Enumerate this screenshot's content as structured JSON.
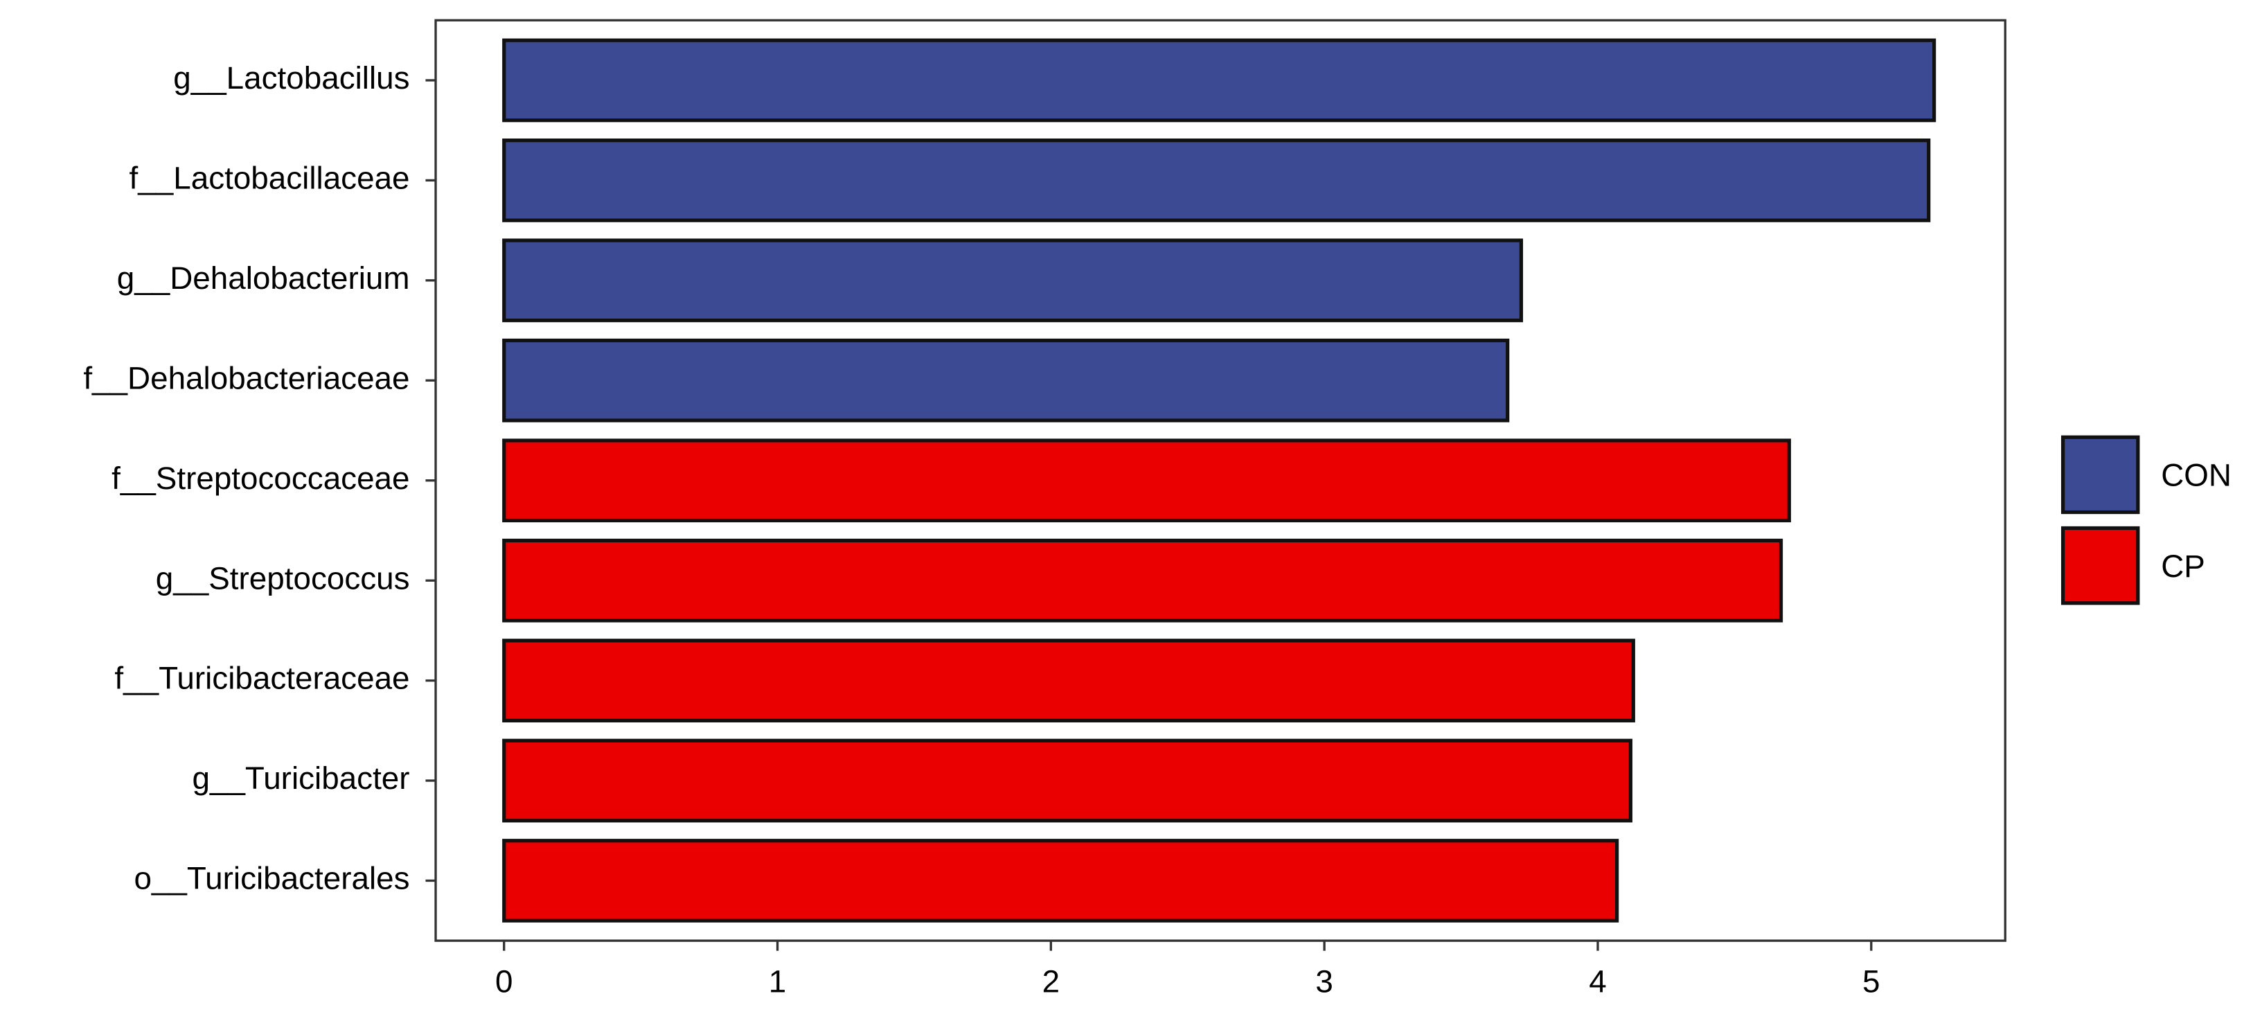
{
  "chart_data": {
    "type": "bar",
    "orientation": "horizontal",
    "categories": [
      "g__Lactobacillus",
      "f__Lactobacillaceae",
      "g__Dehalobacterium",
      "f__Dehalobacteriaceae",
      "f__Streptococcaceae",
      "g__Streptococcus",
      "f__Turicibacteraceae",
      "g__Turicibacter",
      "o__Turicibacterales"
    ],
    "series": [
      {
        "name": "CON",
        "color": "#3b4a93",
        "values": [
          5.23,
          5.21,
          3.72,
          3.67,
          null,
          null,
          null,
          null,
          null
        ]
      },
      {
        "name": "CP",
        "color": "#ea0000",
        "values": [
          null,
          null,
          null,
          null,
          4.7,
          4.67,
          4.13,
          4.12,
          4.07
        ]
      }
    ],
    "xlim": [
      -0.25,
      5.49
    ],
    "xticks": [
      0,
      1,
      2,
      3,
      4,
      5
    ],
    "legend": "right"
  }
}
